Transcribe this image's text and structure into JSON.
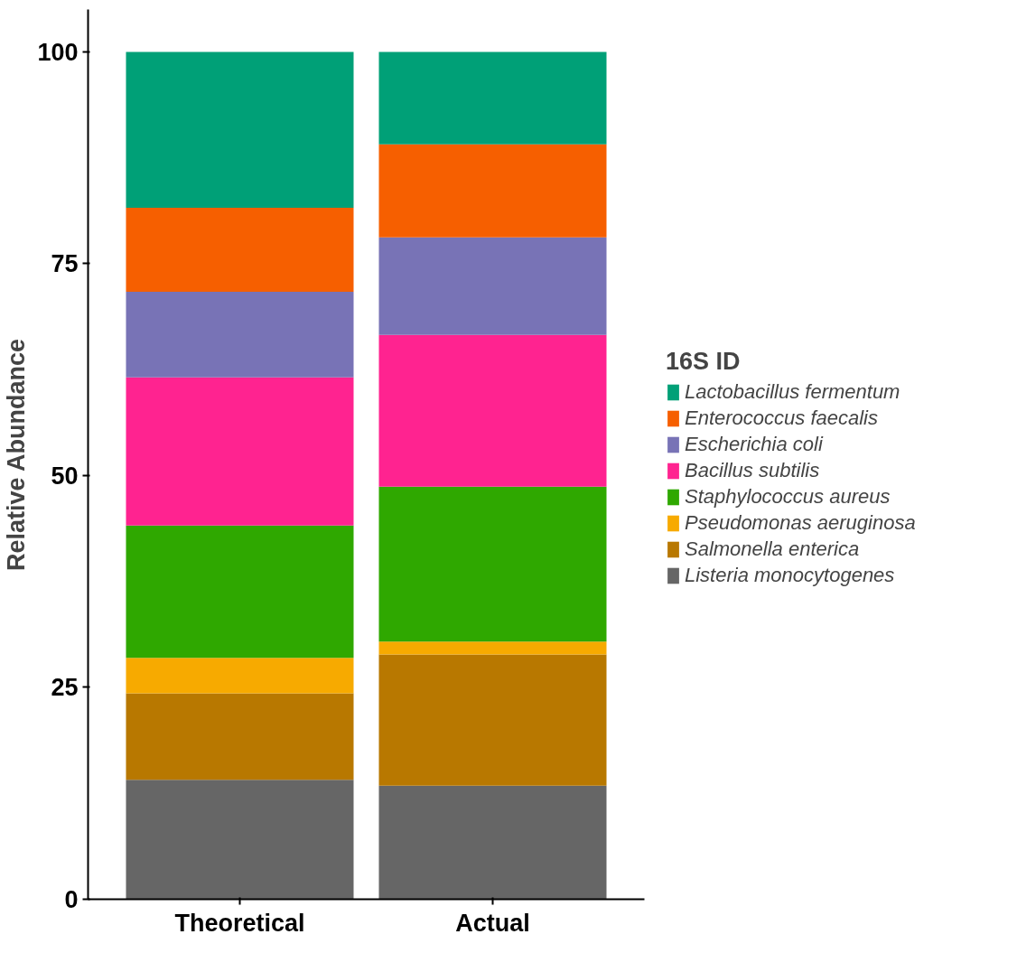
{
  "chart_data": {
    "type": "bar",
    "stacked": true,
    "ylabel": "Relative Abundance",
    "legend_title": "16S ID",
    "categories": [
      "Theoretical",
      "Actual"
    ],
    "ylim": [
      0,
      105
    ],
    "yticks": [
      0,
      25,
      50,
      75,
      100
    ],
    "grid": false,
    "legend": "right",
    "series": [
      {
        "name": "Listeria monocytogenes",
        "color": "#666666",
        "values": [
          14.1,
          13.4
        ]
      },
      {
        "name": "Salmonella enterica",
        "color": "#b87800",
        "values": [
          10.2,
          15.5
        ]
      },
      {
        "name": "Pseudomonas aeruginosa",
        "color": "#f7aa00",
        "values": [
          4.2,
          1.5
        ]
      },
      {
        "name": "Staphylococcus aureus",
        "color": "#2fa800",
        "values": [
          15.6,
          18.3
        ]
      },
      {
        "name": "Bacillus subtilis",
        "color": "#ff2390",
        "values": [
          17.5,
          17.9
        ]
      },
      {
        "name": "Escherichia coli",
        "color": "#7873b6",
        "values": [
          10.1,
          11.5
        ]
      },
      {
        "name": "Enterococcus faecalis",
        "color": "#f65f00",
        "values": [
          9.9,
          11.0
        ]
      },
      {
        "name": "Lactobacillus fermentum",
        "color": "#00a077",
        "values": [
          18.4,
          10.9
        ]
      }
    ]
  }
}
